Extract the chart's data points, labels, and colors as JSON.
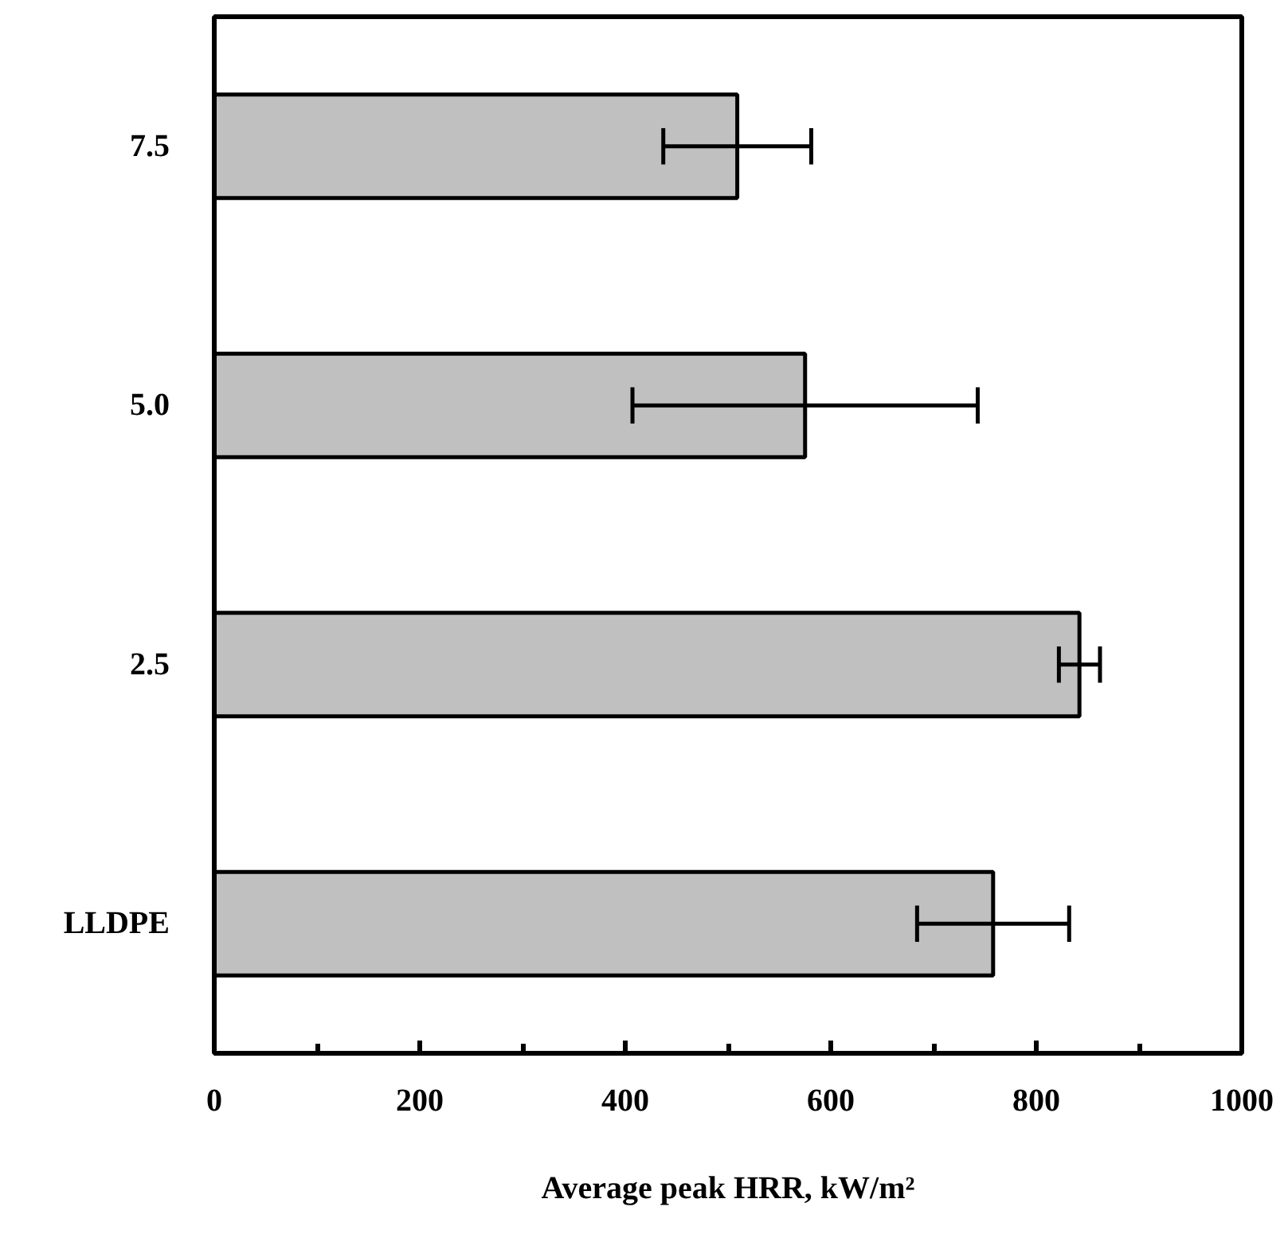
{
  "chart_data": {
    "type": "bar",
    "orientation": "horizontal",
    "xlabel": "Average peak HRR, kW/m²",
    "categories": [
      "7.5",
      "5.0",
      "2.5",
      "LLDPE"
    ],
    "values": [
      509,
      575,
      842,
      758
    ],
    "errors": [
      72,
      168,
      20,
      74
    ],
    "color": "#c0c0c0",
    "xlim": [
      0,
      1000
    ],
    "xticks": [
      0,
      {
        "value": 100,
        "label": null
      },
      200,
      {
        "value": 300,
        "label": null
      },
      400,
      {
        "value": 500,
        "label": null
      },
      600,
      {
        "value": 700,
        "label": null
      },
      800,
      {
        "value": 900,
        "label": null
      },
      1000
    ],
    "grid": false
  }
}
